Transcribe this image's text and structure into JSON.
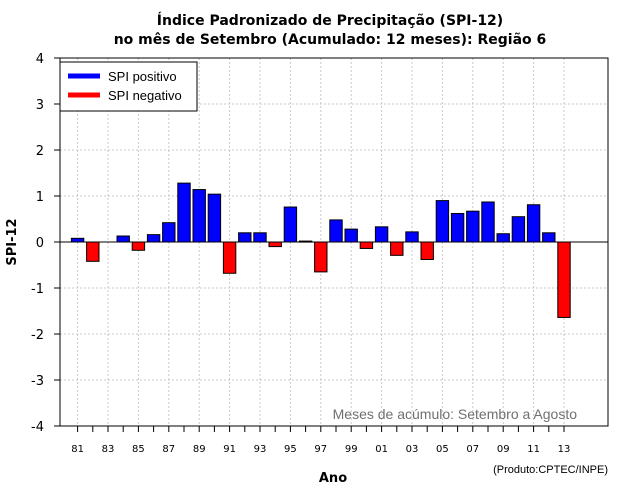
{
  "chart_data": {
    "type": "bar",
    "title": "Índice Padronizado de Precipitação (SPI-12)",
    "subtitle": "no mês de Setembro (Acumulado: 12 meses): Região 6",
    "xlabel": "Ano",
    "ylabel": "SPI-12",
    "ylim": [
      -4,
      4
    ],
    "yticks": [
      -4,
      -3,
      -2,
      -1,
      0,
      1,
      2,
      3,
      4
    ],
    "ytick_labels": [
      "-4",
      "-3",
      "-2",
      "-1",
      "0",
      "1",
      "2",
      "3",
      "4"
    ],
    "grid": true,
    "categories": [
      "81",
      "82",
      "83",
      "84",
      "85",
      "86",
      "87",
      "88",
      "89",
      "90",
      "91",
      "92",
      "93",
      "94",
      "95",
      "96",
      "97",
      "98",
      "99",
      "00",
      "01",
      "02",
      "03",
      "04",
      "05",
      "06",
      "07",
      "08",
      "09",
      "10",
      "11",
      "12",
      "13"
    ],
    "xtick_labels": [
      "81",
      "83",
      "85",
      "87",
      "89",
      "91",
      "93",
      "95",
      "97",
      "99",
      "01",
      "03",
      "05",
      "07",
      "09",
      "11",
      "13"
    ],
    "values": [
      0.08,
      -0.42,
      0.0,
      0.13,
      -0.18,
      0.16,
      0.42,
      1.28,
      1.14,
      1.04,
      -0.68,
      0.2,
      0.2,
      -0.1,
      0.76,
      0.02,
      -0.65,
      0.48,
      0.28,
      -0.14,
      0.33,
      -0.29,
      0.22,
      -0.38,
      0.9,
      0.62,
      0.67,
      0.87,
      0.18,
      0.55,
      0.81,
      0.2,
      -1.64
    ],
    "legend": {
      "position": "top-left",
      "entries": [
        {
          "label": "SPI positivo",
          "color": "#0000ff"
        },
        {
          "label": "SPI negativo",
          "color": "#ff0000"
        }
      ]
    },
    "annotation": "Meses de acúmulo: Setembro a Agosto",
    "credit": "(Produto:CPTEC/INPE)",
    "colors": {
      "positive": "#0000ff",
      "negative": "#ff0000",
      "grid": "#c8c8c8"
    }
  }
}
